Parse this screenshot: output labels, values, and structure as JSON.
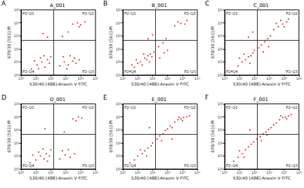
{
  "chart_data": [
    {
      "type": "scatter",
      "panel": "A",
      "title": "A_001",
      "x_label": "530/40 [488]-Anexin V FITC",
      "y_label": "670/30 [561]-PI",
      "log": true,
      "color": "#d8261c",
      "marker": "dot",
      "xlim": [
        1,
        100000
      ],
      "ylim": [
        1,
        100000
      ],
      "xticks": [
        {
          "value": 1,
          "label": "10⁰"
        },
        {
          "value": 10,
          "label": "10¹"
        },
        {
          "value": 100,
          "label": "10²"
        },
        {
          "value": 1000,
          "label": "10³"
        },
        {
          "value": 10000,
          "label": "10⁴"
        },
        {
          "value": 100000,
          "label": "10⁵"
        }
      ],
      "yticks": [
        {
          "value": 1,
          "label": "10⁰"
        },
        {
          "value": 10,
          "label": "10¹"
        },
        {
          "value": 100,
          "label": "10²"
        },
        {
          "value": 1000,
          "label": "10³"
        },
        {
          "value": 10000,
          "label": "10⁴"
        },
        {
          "value": 100000,
          "label": "10⁵"
        }
      ],
      "gates": {
        "x": 160,
        "y": 500
      },
      "annotations": [
        "P2-Q1",
        "P2-Q2",
        "P2-Q3",
        "P2-Q4"
      ],
      "x": [
        5,
        12,
        25,
        40,
        60,
        80,
        20,
        8,
        100,
        35,
        15,
        400,
        800,
        1500,
        3000,
        5000,
        700,
        2000,
        8000,
        1200,
        4000,
        3000,
        6000,
        10000,
        20000,
        8000,
        30,
        60,
        600,
        1500
      ],
      "values": [
        3,
        6,
        10,
        4,
        15,
        8,
        20,
        12,
        25,
        30,
        3,
        5,
        10,
        6,
        12,
        8,
        25,
        30,
        15,
        3,
        20,
        8000,
        10000,
        7000,
        12000,
        5000,
        1500,
        800,
        900,
        2000
      ]
    },
    {
      "type": "scatter",
      "panel": "B",
      "title": "B_001",
      "x_label": "530/40 [488]-Anexin V FITC",
      "y_label": "670/30 [561]-PI",
      "log": true,
      "color": "#d8261c",
      "marker": "dot",
      "xlim": [
        1,
        100000
      ],
      "ylim": [
        1,
        100000
      ],
      "xticks": [
        {
          "value": 1,
          "label": "10⁰"
        },
        {
          "value": 10,
          "label": "10¹"
        },
        {
          "value": 100,
          "label": "10²"
        },
        {
          "value": 1000,
          "label": "10³"
        },
        {
          "value": 10000,
          "label": "10⁴"
        },
        {
          "value": 100000,
          "label": "10⁵"
        }
      ],
      "yticks": [
        {
          "value": 1,
          "label": "10⁰"
        },
        {
          "value": 10,
          "label": "10¹"
        },
        {
          "value": 100,
          "label": "10²"
        },
        {
          "value": 1000,
          "label": "10³"
        },
        {
          "value": 10000,
          "label": "10⁴"
        },
        {
          "value": 100000,
          "label": "10⁵"
        }
      ],
      "gates": {
        "x": 160,
        "y": 500
      },
      "annotations": [
        "P2-Q1",
        "P2-Q2",
        "P2-Q3",
        "P2-Q4"
      ],
      "x": [
        3,
        6,
        10,
        15,
        20,
        30,
        40,
        50,
        70,
        90,
        120,
        25,
        8,
        4,
        60,
        300,
        600,
        1000,
        250,
        500,
        800,
        3000,
        8000,
        15000,
        5000,
        20000,
        50,
        100
      ],
      "values": [
        2,
        4,
        8,
        10,
        6,
        20,
        15,
        30,
        40,
        25,
        60,
        40,
        15,
        6,
        10,
        20,
        50,
        80,
        150,
        300,
        600,
        6000,
        9000,
        8000,
        12000,
        15000,
        600,
        1200
      ]
    },
    {
      "type": "scatter",
      "panel": "C",
      "title": "C_001",
      "x_label": "530/40 [488]-Anexin V FITC",
      "y_label": "670/30 [561]-PI",
      "log": true,
      "color": "#d8261c",
      "marker": "dot",
      "xlim": [
        1,
        100000
      ],
      "ylim": [
        1,
        100000
      ],
      "xticks": [
        {
          "value": 1,
          "label": "10⁰"
        },
        {
          "value": 10,
          "label": "10¹"
        },
        {
          "value": 100,
          "label": "10²"
        },
        {
          "value": 1000,
          "label": "10³"
        },
        {
          "value": 10000,
          "label": "10⁴"
        },
        {
          "value": 100000,
          "label": "10⁵"
        }
      ],
      "yticks": [
        {
          "value": 1,
          "label": "10⁰"
        },
        {
          "value": 10,
          "label": "10¹"
        },
        {
          "value": 100,
          "label": "10²"
        },
        {
          "value": 1000,
          "label": "10³"
        },
        {
          "value": 10000,
          "label": "10⁴"
        },
        {
          "value": 100000,
          "label": "10⁵"
        }
      ],
      "gates": {
        "x": 160,
        "y": 500
      },
      "annotations": [
        "P2-Q1",
        "P2-Q2",
        "P2-Q3",
        "P2-Q4"
      ],
      "x": [
        3,
        8,
        15,
        25,
        40,
        60,
        80,
        100,
        20,
        10,
        50,
        200,
        300,
        500,
        800,
        1200,
        400,
        900,
        2000,
        4000,
        8000,
        15000,
        6000,
        20000,
        3000,
        10000,
        40,
        80
      ],
      "values": [
        2,
        5,
        10,
        15,
        25,
        30,
        50,
        80,
        40,
        20,
        8,
        120,
        200,
        350,
        600,
        1000,
        60,
        150,
        3000,
        5000,
        8000,
        12000,
        15000,
        20000,
        9000,
        5000,
        800,
        2000
      ]
    },
    {
      "type": "scatter",
      "panel": "D",
      "title": "D_001",
      "x_label": "530/40 [488]-Anexin V FITC",
      "y_label": "670/30 [561]-PI",
      "log": true,
      "color": "#d8261c",
      "marker": "dot",
      "xlim": [
        1,
        100000
      ],
      "ylim": [
        1,
        100000
      ],
      "xticks": [
        {
          "value": 1,
          "label": "10⁰"
        },
        {
          "value": 10,
          "label": "10¹"
        },
        {
          "value": 100,
          "label": "10²"
        },
        {
          "value": 1000,
          "label": "10³"
        },
        {
          "value": 10000,
          "label": "10⁴"
        },
        {
          "value": 100000,
          "label": "10⁵"
        }
      ],
      "yticks": [
        {
          "value": 1,
          "label": "10⁰"
        },
        {
          "value": 10,
          "label": "10¹"
        },
        {
          "value": 100,
          "label": "10²"
        },
        {
          "value": 1000,
          "label": "10³"
        },
        {
          "value": 10000,
          "label": "10⁴"
        },
        {
          "value": 100000,
          "label": "10⁵"
        }
      ],
      "gates": {
        "x": 160,
        "y": 500
      },
      "annotations": [
        "P2-Q1",
        "P2-Q2",
        "P2-Q3",
        "P2-Q4"
      ],
      "x": [
        4,
        10,
        20,
        35,
        50,
        80,
        15,
        6,
        100,
        30,
        60,
        400,
        900,
        2000,
        4000,
        1500,
        600,
        3000,
        7000,
        12000,
        5000,
        40,
        800
      ],
      "values": [
        3,
        5,
        10,
        6,
        15,
        10,
        20,
        12,
        30,
        35,
        4,
        6,
        12,
        8,
        15,
        30,
        25,
        7000,
        10000,
        8000,
        5000,
        1200,
        700
      ]
    },
    {
      "type": "scatter",
      "panel": "E",
      "title": "E_001",
      "x_label": "530/40 [488]-Anexin V FITC",
      "y_label": "670/30 [561]-PI",
      "log": true,
      "color": "#d8261c",
      "marker": "dot",
      "xlim": [
        1,
        100000
      ],
      "ylim": [
        1,
        100000
      ],
      "xticks": [
        {
          "value": 1,
          "label": "10⁰"
        },
        {
          "value": 10,
          "label": "10¹"
        },
        {
          "value": 100,
          "label": "10²"
        },
        {
          "value": 1000,
          "label": "10³"
        },
        {
          "value": 10000,
          "label": "10⁴"
        },
        {
          "value": 100000,
          "label": "10⁵"
        }
      ],
      "yticks": [
        {
          "value": 1,
          "label": "10⁰"
        },
        {
          "value": 10,
          "label": "10¹"
        },
        {
          "value": 100,
          "label": "10²"
        },
        {
          "value": 1000,
          "label": "10³"
        },
        {
          "value": 10000,
          "label": "10⁴"
        },
        {
          "value": 100000,
          "label": "10⁵"
        }
      ],
      "gates": {
        "x": 160,
        "y": 500
      },
      "annotations": [
        "P2-Q1",
        "P2-Q2",
        "P2-Q3",
        "P2-Q4"
      ],
      "x": [
        3,
        6,
        10,
        20,
        30,
        50,
        80,
        100,
        15,
        40,
        200,
        300,
        500,
        700,
        1000,
        1500,
        2000,
        400,
        3000,
        5000,
        8000,
        12000,
        20000,
        10000,
        6000,
        30000,
        60,
        2000
      ],
      "values": [
        3,
        5,
        10,
        15,
        25,
        40,
        60,
        100,
        30,
        10,
        200,
        350,
        500,
        900,
        1200,
        2000,
        1500,
        150,
        4000,
        6000,
        7000,
        9000,
        10000,
        5000,
        9000,
        12000,
        1500,
        200
      ]
    },
    {
      "type": "scatter",
      "panel": "F",
      "title": "F_001",
      "x_label": "530/40 [488]-Anexin V FITC",
      "y_label": "670/30 [561]-PI",
      "log": true,
      "color": "#d8261c",
      "marker": "dot",
      "xlim": [
        1,
        100000
      ],
      "ylim": [
        1,
        100000
      ],
      "xticks": [
        {
          "value": 1,
          "label": "10⁰"
        },
        {
          "value": 10,
          "label": "10¹"
        },
        {
          "value": 100,
          "label": "10²"
        },
        {
          "value": 1000,
          "label": "10³"
        },
        {
          "value": 10000,
          "label": "10⁴"
        },
        {
          "value": 100000,
          "label": "10⁵"
        }
      ],
      "yticks": [
        {
          "value": 1,
          "label": "10⁰"
        },
        {
          "value": 10,
          "label": "10¹"
        },
        {
          "value": 100,
          "label": "10²"
        },
        {
          "value": 1000,
          "label": "10³"
        },
        {
          "value": 10000,
          "label": "10⁴"
        },
        {
          "value": 100000,
          "label": "10⁵"
        }
      ],
      "gates": {
        "x": 160,
        "y": 500
      },
      "annotations": [
        "P2-Q1",
        "P2-Q2",
        "P2-Q3",
        "P2-Q4"
      ],
      "x": [
        4,
        8,
        15,
        25,
        40,
        60,
        90,
        20,
        10,
        150,
        250,
        400,
        600,
        900,
        1300,
        2000,
        700,
        300,
        3000,
        5000,
        8000,
        12000,
        20000,
        30000,
        15000,
        6000,
        50
      ],
      "values": [
        4,
        8,
        15,
        30,
        50,
        80,
        120,
        8,
        25,
        200,
        300,
        500,
        700,
        1100,
        1500,
        2500,
        400,
        150,
        3500,
        6000,
        9000,
        10000,
        12000,
        15000,
        7000,
        12000,
        1000
      ]
    }
  ]
}
